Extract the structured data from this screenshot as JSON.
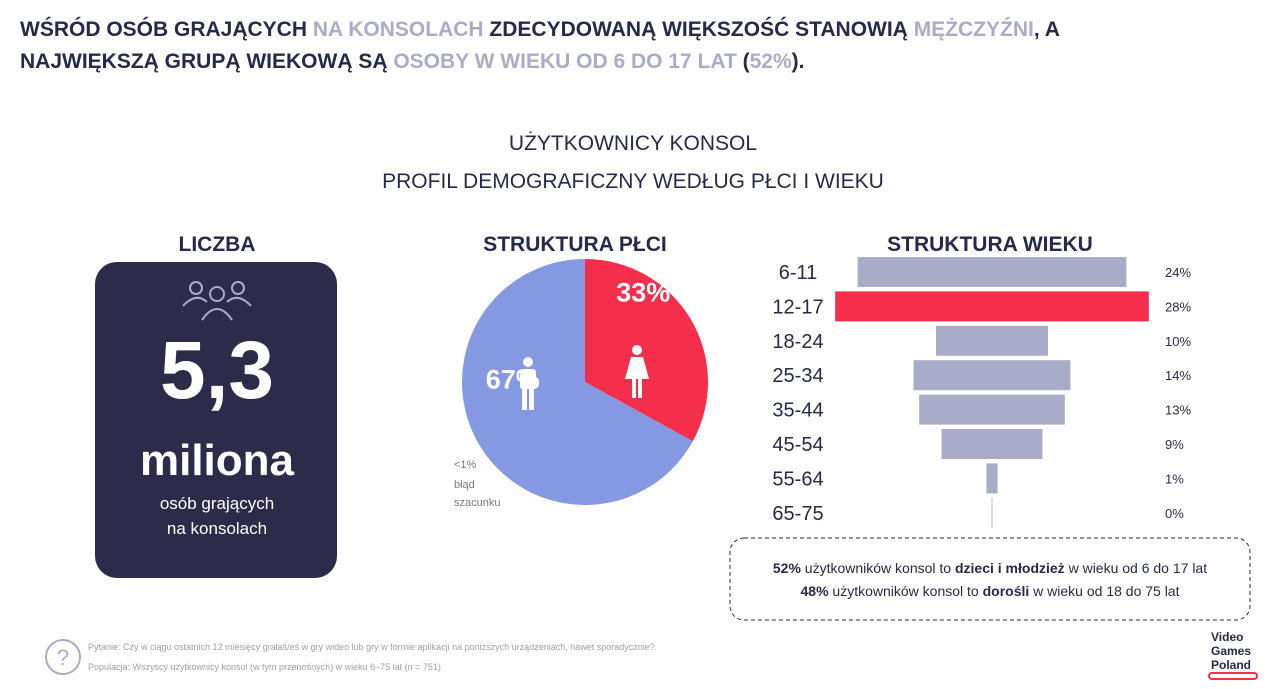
{
  "headline": [
    {
      "line": [
        {
          "text": "WŚRÓD OSÓB GRAJĄCYCH ",
          "color": "#262a4a"
        },
        {
          "text": "NA KONSOLACH",
          "color": "#a9acc9"
        },
        {
          "text": " ZDECYDOWANĄ WIĘKSZOŚĆ STANOWIĄ ",
          "color": "#262a4a"
        },
        {
          "text": "MĘŻCZYŹNI",
          "color": "#a9acc9"
        },
        {
          "text": ", A",
          "color": "#262a4a"
        }
      ]
    },
    {
      "line": [
        {
          "text": "NAJWIĘKSZĄ GRUPĄ WIEKOWĄ SĄ ",
          "color": "#262a4a"
        },
        {
          "text": "OSOBY W WIEKU OD 6 DO 17 LAT",
          "color": "#a9acc9"
        },
        {
          "text": " (",
          "color": "#262a4a"
        },
        {
          "text": "52%",
          "color": "#a9acc9"
        },
        {
          "text": ").",
          "color": "#262a4a"
        }
      ]
    }
  ],
  "section_title": [
    "UŻYTKOWNICY KONSOL",
    "PROFIL DEMOGRAFICZNY WEDŁUG PŁCI I WIEKU"
  ],
  "count_panel": {
    "heading": "LICZBA",
    "number": "5,3",
    "unit": "miliona",
    "caption": [
      "osób grających",
      "na konsolach"
    ]
  },
  "chart_data": [
    {
      "type": "pie",
      "title": "STRUKTURA PŁCI",
      "values": [
        33,
        67
      ],
      "value_labels": [
        "33%",
        "67%"
      ],
      "colors": [
        "#f42e4b",
        "#8499e2"
      ],
      "note": [
        "<1%",
        "błąd",
        "szacunku"
      ]
    },
    {
      "type": "bar",
      "title": "STRUKTURA WIEKU",
      "categories": [
        "6-11",
        "12-17",
        "18-24",
        "25-34",
        "35-44",
        "45-54",
        "55-64",
        "65-75"
      ],
      "values": [
        24,
        28,
        10,
        14,
        13,
        9,
        1,
        0
      ],
      "value_labels": [
        "24%",
        "28%",
        "10%",
        "14%",
        "13%",
        "9%",
        "1%",
        "0%"
      ],
      "colors": [
        "#a9acc9",
        "#f42e4b",
        "#a9acc9",
        "#a9acc9",
        "#a9acc9",
        "#a9acc9",
        "#a9acc9",
        "#a9acc9"
      ]
    }
  ],
  "summary": [
    {
      "line": [
        {
          "text": "52%",
          "bold": true
        },
        {
          "text": " użytkowników konsol to ",
          "bold": false
        },
        {
          "text": "dzieci i młodzież",
          "bold": true
        },
        {
          "text": " w wieku od 6 do 17 lat",
          "bold": false
        }
      ]
    },
    {
      "line": [
        {
          "text": "48%",
          "bold": true
        },
        {
          "text": " użytkowników konsol to ",
          "bold": false
        },
        {
          "text": "dorośli",
          "bold": true
        },
        {
          "text": " w wieku od 18 do 75 lat",
          "bold": false
        }
      ]
    }
  ],
  "footer": {
    "icon": "?",
    "question": "Pytanie: Czy w ciągu ostatnich 12 miesięcy grałaś/eś w gry wideo lub gry w formie aplikacji na poniższych urządzeniach, nawet sporadycznie?",
    "population": "Populacja: Wszyscy użytkownicy konsol (w tym przenośnych) w wieku 6–75 lat (n = 751)",
    "logo": [
      "Video",
      "Games",
      "Poland"
    ]
  }
}
